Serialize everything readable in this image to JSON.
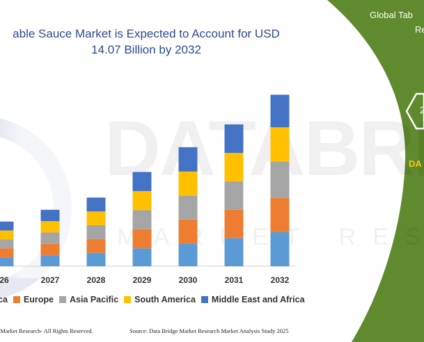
{
  "title_lines": [
    "able Sauce Market is Expected to Account for USD",
    "14.07 Billion by 2032"
  ],
  "right_panel": {
    "title_lines": [
      "Global Tab",
      "Re"
    ],
    "badge_text": "2",
    "caption": "DA",
    "color": "#5f8a2e"
  },
  "watermark": {
    "brand": "DATABRIDGE",
    "tagline": "MARKET RESEARCH"
  },
  "chart_data": {
    "type": "bar",
    "stacked": true,
    "categories": [
      "26",
      "2027",
      "2028",
      "2029",
      "2030",
      "2031",
      "2032"
    ],
    "series": [
      {
        "name": "ca",
        "color": "#5b9bd5",
        "values": [
          1.1,
          1.35,
          1.65,
          2.2,
          2.8,
          3.45,
          4.2
        ]
      },
      {
        "name": "Europe",
        "color": "#ed7d31",
        "values": [
          1.1,
          1.4,
          1.7,
          2.35,
          2.95,
          3.5,
          4.2
        ]
      },
      {
        "name": "Asia Pacific",
        "color": "#a5a5a5",
        "values": [
          1.1,
          1.4,
          1.7,
          2.35,
          2.95,
          3.5,
          4.5
        ]
      },
      {
        "name": "South America",
        "color": "#ffc000",
        "values": [
          1.1,
          1.4,
          1.7,
          2.35,
          2.95,
          3.5,
          4.2
        ]
      },
      {
        "name": "Middle East and Africa",
        "color": "#4472c4",
        "values": [
          1.1,
          1.4,
          1.7,
          2.35,
          3.0,
          3.5,
          4.0
        ]
      }
    ],
    "grid": false,
    "legend_position": "bottom"
  },
  "footer": {
    "left": "dge Market Research- All Rights Reserved.",
    "right": "Source: Data Bridge Market Research Market Analysis Study 2025"
  }
}
